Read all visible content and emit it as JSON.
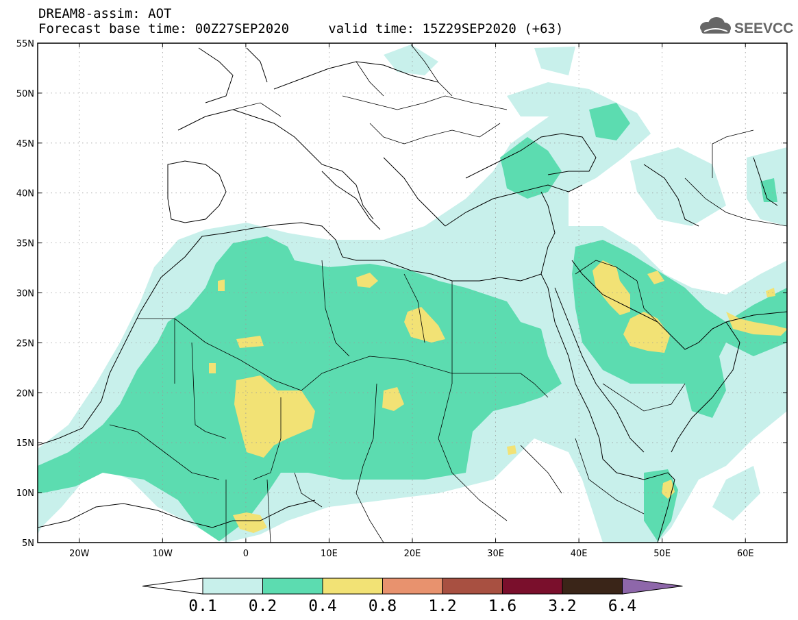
{
  "header": {
    "line1": "DREAM8-assim: AOT",
    "base_label": "Forecast base time: 00Z27SEP2020",
    "valid_label": "valid time: 15Z29SEP2020 (+63)",
    "logo_text": "SEEVCCC"
  },
  "map": {
    "lon_range": [
      -25,
      65
    ],
    "lat_range": [
      5,
      55
    ],
    "lat_ticks": [
      {
        "value": 55,
        "label": "55N"
      },
      {
        "value": 50,
        "label": "50N"
      },
      {
        "value": 45,
        "label": "45N"
      },
      {
        "value": 40,
        "label": "40N"
      },
      {
        "value": 35,
        "label": "35N"
      },
      {
        "value": 30,
        "label": "30N"
      },
      {
        "value": 25,
        "label": "25N"
      },
      {
        "value": 20,
        "label": "20N"
      },
      {
        "value": 15,
        "label": "15N"
      },
      {
        "value": 10,
        "label": "10N"
      },
      {
        "value": 5,
        "label": "5N"
      }
    ],
    "lon_ticks": [
      {
        "value": -20,
        "label": "20W"
      },
      {
        "value": -10,
        "label": "10W"
      },
      {
        "value": 0,
        "label": "0"
      },
      {
        "value": 10,
        "label": "10E"
      },
      {
        "value": 20,
        "label": "20E"
      },
      {
        "value": 30,
        "label": "30E"
      },
      {
        "value": 40,
        "label": "40E"
      },
      {
        "value": 50,
        "label": "50E"
      },
      {
        "value": 60,
        "label": "60E"
      }
    ],
    "grid": true,
    "field_description_levels": [
      0.1,
      0.2,
      0.4,
      0.8
    ]
  },
  "colorbar": {
    "levels": [
      "0.1",
      "0.2",
      "0.4",
      "0.8",
      "1.2",
      "1.6",
      "3.2",
      "6.4"
    ],
    "colors": [
      "#c8f0eb",
      "#5cdcb0",
      "#f2e275",
      "#e8926e",
      "#a85041",
      "#7a0f2c",
      "#3a2518",
      "#8e67aa"
    ],
    "under_color": "#ffffff"
  }
}
